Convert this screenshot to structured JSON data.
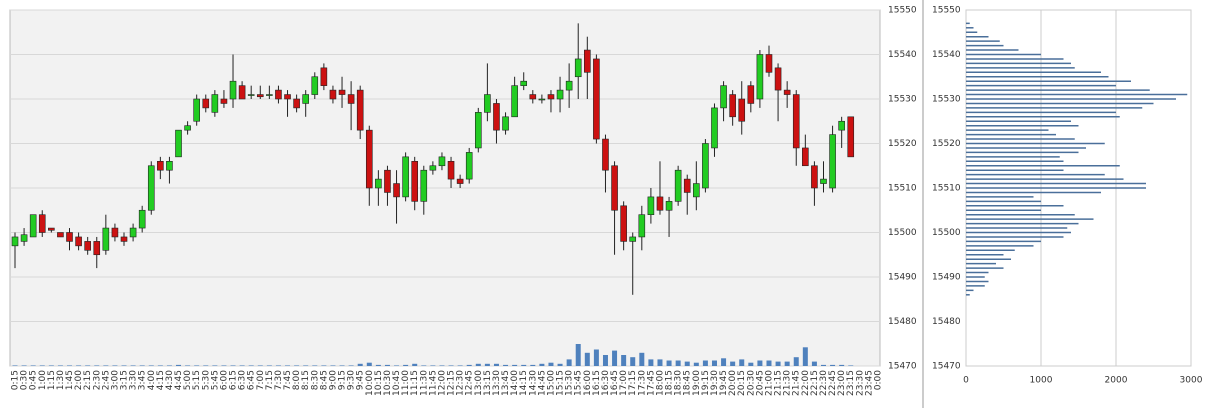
{
  "chart_data": [
    {
      "type": "candlestick",
      "categories": [
        "0:15",
        "0:30",
        "0:45",
        "1:00",
        "1:15",
        "1:30",
        "1:45",
        "2:00",
        "2:15",
        "2:30",
        "2:45",
        "3:00",
        "3:15",
        "3:30",
        "3:45",
        "4:00",
        "4:15",
        "4:30",
        "4:45",
        "5:00",
        "5:15",
        "5:30",
        "5:45",
        "6:00",
        "6:15",
        "6:30",
        "6:45",
        "7:00",
        "7:15",
        "7:30",
        "7:45",
        "8:00",
        "8:15",
        "8:30",
        "8:45",
        "9:00",
        "9:15",
        "9:30",
        "9:45",
        "10:00",
        "10:15",
        "10:30",
        "10:45",
        "11:00",
        "11:15",
        "11:30",
        "11:45",
        "12:00",
        "12:15",
        "12:30",
        "12:45",
        "13:00",
        "13:15",
        "13:30",
        "13:45",
        "14:00",
        "14:15",
        "14:30",
        "14:45",
        "15:00",
        "15:15",
        "15:30",
        "15:45",
        "16:00",
        "16:15",
        "16:30",
        "16:45",
        "17:00",
        "17:15",
        "17:30",
        "17:45",
        "18:00",
        "18:15",
        "18:30",
        "18:45",
        "19:00",
        "19:15",
        "19:30",
        "19:45",
        "20:00",
        "20:15",
        "20:30",
        "20:45",
        "21:00",
        "21:15",
        "21:30",
        "21:45",
        "22:00",
        "22:15",
        "22:30",
        "22:45",
        "23:00",
        "23:15",
        "23:30",
        "23:45",
        "0:00"
      ],
      "open": [
        15497,
        15498,
        15499,
        15504,
        15501,
        15500,
        15500,
        15499,
        15498,
        15498,
        15496,
        15501,
        15499,
        15499,
        15501,
        15505,
        15516,
        15514,
        15517,
        15523,
        15525,
        15530,
        15527,
        15530,
        15530,
        15533,
        15531,
        15531,
        15531,
        15532,
        15531,
        15530,
        15529,
        15531,
        15537,
        15532,
        15532,
        15531,
        15532,
        15523,
        15510,
        15514,
        15511,
        15508,
        15516,
        15507,
        15514,
        15515,
        15516,
        15512,
        15512,
        15519,
        15527,
        15529,
        15523,
        15526,
        15533,
        15531,
        15530,
        15531,
        15530,
        15532,
        15535,
        15541,
        15539,
        15521,
        15515,
        15506,
        15498,
        15499,
        15504,
        15508,
        15505,
        15507,
        15512,
        15508,
        15510,
        15519,
        15528,
        15531,
        15530,
        15533,
        15530,
        15540,
        15537,
        15532,
        15531,
        15519,
        15515,
        15511,
        15510,
        15523,
        15526,
        null,
        null,
        null
      ],
      "high": [
        15500,
        15501,
        15504,
        15505,
        15501,
        15500,
        15501,
        15500,
        15499,
        15499,
        15504,
        15502,
        15500,
        15502,
        15506,
        15516,
        15517,
        15517,
        15523,
        15525,
        15531,
        15531,
        15532,
        15532,
        15540,
        15534,
        15533,
        15533,
        15533,
        15533,
        15532,
        15531,
        15532,
        15536,
        15538,
        15533,
        15535,
        15534,
        15533,
        15524,
        15514,
        15515,
        15514,
        15518,
        15517,
        15515,
        15516,
        15518,
        15517,
        15513,
        15519,
        15528,
        15538,
        15530,
        15527,
        15535,
        15536,
        15532,
        15531,
        15532,
        15535,
        15538,
        15547,
        15544,
        15540,
        15522,
        15516,
        15507,
        15500,
        15506,
        15510,
        15516,
        15508,
        15515,
        15513,
        15516,
        15521,
        15529,
        15534,
        15532,
        15534,
        15534,
        15541,
        15542,
        15538,
        15534,
        15532,
        15522,
        15516,
        15516,
        15524,
        15526,
        15526,
        null,
        null,
        null
      ],
      "low": [
        15492,
        15497,
        15499,
        15499,
        15500,
        15499,
        15496,
        15496,
        15495,
        15492,
        15495,
        15498,
        15497,
        15498,
        15500,
        15504,
        15512,
        15511,
        15517,
        15522,
        15524,
        15527,
        15526,
        15528,
        15528,
        15530,
        15530,
        15530,
        15530,
        15529,
        15526,
        15527,
        15526,
        15530,
        15532,
        15529,
        15528,
        15523,
        15521,
        15506,
        15506,
        15506,
        15502,
        15507,
        15505,
        15504,
        15513,
        15514,
        15510,
        15510,
        15511,
        15518,
        15525,
        15520,
        15522,
        15526,
        15532,
        15529,
        15529,
        15527,
        15527,
        15528,
        15530,
        15530,
        15520,
        15509,
        15495,
        15496,
        15486,
        15496,
        15502,
        15504,
        15499,
        15506,
        15504,
        15505,
        15509,
        15517,
        15525,
        15524,
        15522,
        15527,
        15528,
        15535,
        15525,
        15528,
        15515,
        15515,
        15506,
        15509,
        15509,
        15519,
        15517,
        null,
        null,
        null
      ],
      "close": [
        15499,
        15499.5,
        15504,
        15500,
        15500.5,
        15499,
        15498,
        15497,
        15496,
        15495,
        15501,
        15499,
        15498,
        15501,
        15505,
        15515,
        15514,
        15516,
        15523,
        15524,
        15530,
        15528,
        15531,
        15529,
        15534,
        15530,
        15531,
        15530.5,
        15531,
        15530,
        15530,
        15528,
        15531,
        15535,
        15533,
        15530,
        15531,
        15529,
        15523,
        15510,
        15512,
        15509,
        15508,
        15517,
        15507,
        15514,
        15515,
        15517,
        15512,
        15511,
        15518,
        15527,
        15531,
        15523,
        15526,
        15533,
        15534,
        15530,
        15530,
        15530,
        15532,
        15534,
        15539,
        15536,
        15521,
        15514,
        15505,
        15498,
        15499,
        15504,
        15508,
        15505,
        15507,
        15514,
        15509,
        15511,
        15520,
        15528,
        15533,
        15526,
        15525,
        15529,
        15540,
        15536,
        15532,
        15531,
        15519,
        15515,
        15510,
        15512,
        15522,
        15525,
        15517,
        null,
        null,
        null
      ],
      "volume": [
        0.5,
        0.5,
        0.5,
        0.5,
        0.5,
        0.5,
        0.5,
        0.5,
        0.5,
        0.5,
        0.5,
        0.5,
        0.5,
        0.5,
        0.5,
        0.5,
        0.5,
        0.5,
        1,
        0.5,
        0.5,
        0.5,
        0.5,
        0.5,
        0.5,
        0.5,
        0.5,
        0.5,
        0.5,
        0.5,
        0.5,
        0.5,
        0.5,
        0.5,
        0.5,
        0.5,
        0.5,
        0.5,
        2,
        3,
        1,
        1,
        0.5,
        1,
        2,
        0.5,
        0.5,
        0.5,
        0.5,
        0.5,
        1,
        2,
        2,
        2,
        1,
        1,
        1,
        1,
        2,
        3,
        2,
        6,
        20,
        12,
        15,
        10,
        14,
        10,
        8,
        12,
        6,
        6,
        5,
        5,
        4,
        3,
        5,
        5,
        7,
        4,
        6,
        3,
        5,
        5,
        4,
        4,
        8,
        17,
        4,
        1,
        1,
        1,
        0.5,
        null,
        null,
        null
      ],
      "up_color": "#22cc22",
      "down_color": "#cc1111",
      "volume_color": "#4f81bd",
      "ylim": [
        15470,
        15550
      ],
      "yticks": [
        15470,
        15480,
        15490,
        15500,
        15510,
        15520,
        15530,
        15540,
        15550
      ],
      "grid": true
    },
    {
      "type": "barh",
      "y": [
        15486,
        15487,
        15488,
        15489,
        15490,
        15491,
        15492,
        15493,
        15494,
        15495,
        15496,
        15497,
        15498,
        15499,
        15500,
        15501,
        15502,
        15503,
        15504,
        15505,
        15506,
        15507,
        15508,
        15509,
        15510,
        15511,
        15512,
        15513,
        15514,
        15515,
        15516,
        15517,
        15518,
        15519,
        15520,
        15521,
        15522,
        15523,
        15524,
        15525,
        15526,
        15527,
        15528,
        15529,
        15530,
        15531,
        15532,
        15533,
        15534,
        15535,
        15536,
        15537,
        15538,
        15539,
        15540,
        15541,
        15542,
        15543,
        15544,
        15545,
        15546,
        15547
      ],
      "values": [
        50,
        100,
        250,
        300,
        250,
        300,
        500,
        400,
        600,
        500,
        650,
        900,
        1000,
        1300,
        1400,
        1350,
        1500,
        1700,
        1450,
        1000,
        1300,
        1000,
        900,
        1800,
        2400,
        2400,
        2100,
        1850,
        1300,
        2050,
        1300,
        1250,
        1500,
        1600,
        1850,
        1450,
        1200,
        1100,
        1500,
        1400,
        2050,
        2000,
        2350,
        2500,
        2800,
        2950,
        2450,
        2000,
        2200,
        1900,
        1800,
        1450,
        1400,
        1300,
        1000,
        700,
        500,
        450,
        300,
        150,
        100,
        50
      ],
      "color": "#4a6f9a",
      "xlim": [
        0,
        3000
      ],
      "xticks": [
        0,
        1000,
        2000,
        3000
      ],
      "ylim": [
        15470,
        15550
      ],
      "yticks": [
        15470,
        15480,
        15490,
        15500,
        15510,
        15520,
        15530,
        15540,
        15550
      ],
      "grid": true
    }
  ]
}
